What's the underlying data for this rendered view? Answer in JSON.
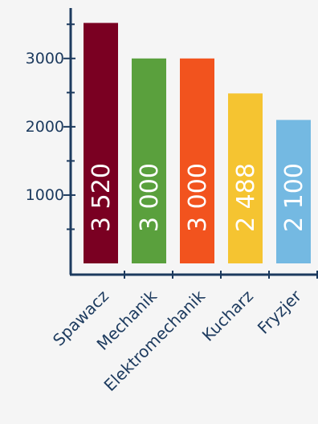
{
  "chart_data": {
    "type": "bar",
    "title": "",
    "xlabel": "",
    "ylabel": "",
    "categories": [
      "Spawacz",
      "Mechanik",
      "Elektromechanik",
      "Kucharz",
      "Fryzjer"
    ],
    "values": [
      3520,
      3000,
      3000,
      2488,
      2100
    ],
    "value_labels": [
      "3 520",
      "3 000",
      "3 000",
      "2 488",
      "2 100"
    ],
    "colors": [
      "#7a0022",
      "#5aa03d",
      "#f2531e",
      "#f5c431",
      "#74b9e2"
    ],
    "y_ticks": [
      1000,
      2000,
      3000
    ],
    "y_tick_labels": [
      "1000",
      "2000",
      "3000"
    ],
    "ylim": [
      0,
      3550
    ],
    "grid": false,
    "legend": "none"
  }
}
